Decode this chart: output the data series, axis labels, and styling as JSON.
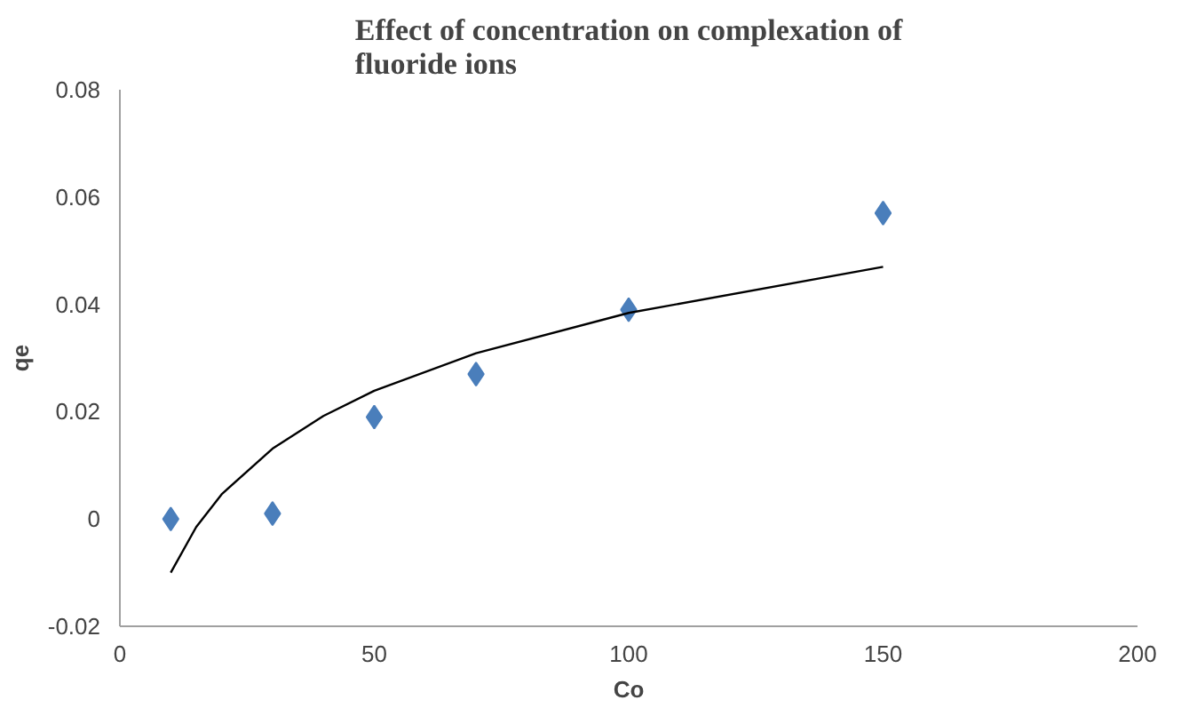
{
  "chart_data": {
    "type": "scatter",
    "title": "Effect of concentration on complexation of\nfluoride ions",
    "xlabel": "Co",
    "ylabel": "qe",
    "xlim": [
      0,
      200
    ],
    "xticks": [
      0,
      50,
      100,
      150,
      200
    ],
    "ylim": [
      -0.02,
      0.08
    ],
    "yticks": [
      -0.02,
      0,
      0.02,
      0.04,
      0.06,
      0.08
    ],
    "grid": false,
    "series": [
      {
        "color": "#4a7ebb",
        "marker": "diamond",
        "x": [
          10,
          30,
          50,
          70,
          100,
          150
        ],
        "values": [
          0,
          0.001,
          0.019,
          0.027,
          0.039,
          0.057
        ]
      },
      {
        "type": "line",
        "color": "#000000",
        "line_style": "solid",
        "x": [
          10,
          15,
          20,
          30,
          40,
          50,
          70,
          100,
          150
        ],
        "values": [
          -0.01,
          -0.0015,
          0.0046,
          0.0131,
          0.0192,
          0.0239,
          0.0309,
          0.0384,
          0.047
        ]
      }
    ]
  }
}
